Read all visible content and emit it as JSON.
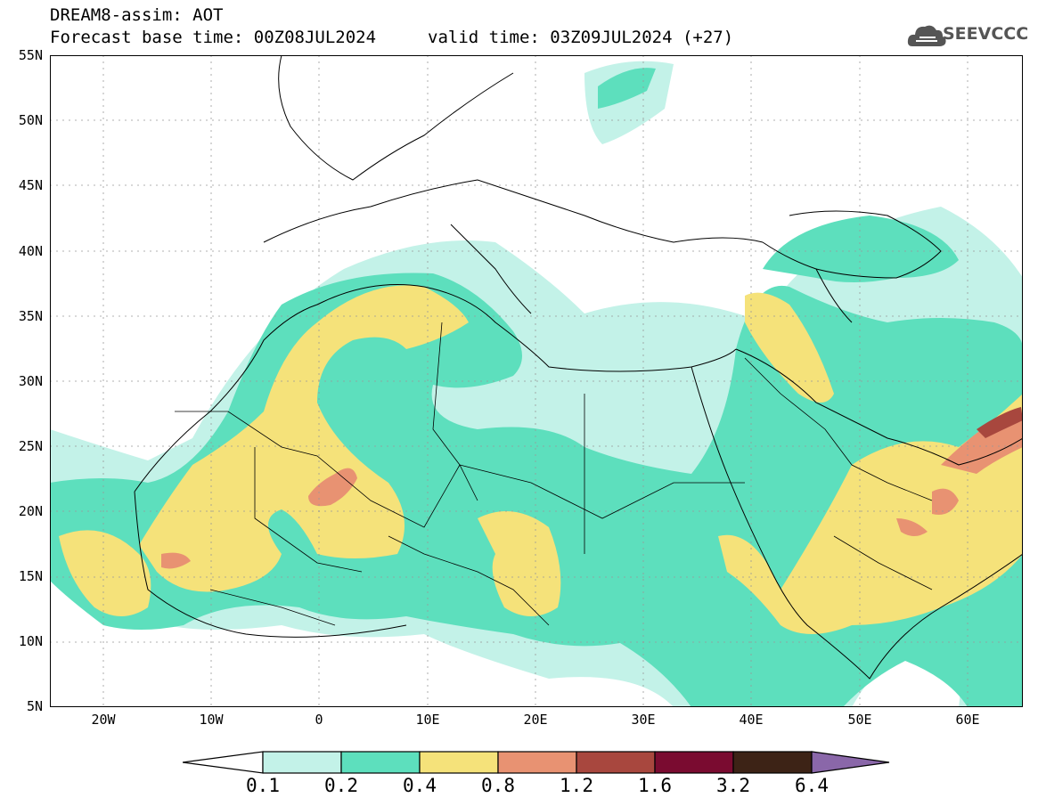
{
  "header": {
    "line1": "DREAM8-assim: AOT",
    "line2": "Forecast base time: 00Z08JUL2024",
    "valid_time": "valid time: 03Z09JUL2024 (+27)"
  },
  "logo": {
    "text": "SEEVCCC",
    "icon": "cloud-icon"
  },
  "map": {
    "y_ticks": [
      "55N",
      "50N",
      "45N",
      "40N",
      "35N",
      "30N",
      "25N",
      "20N",
      "15N",
      "10N",
      "5N"
    ],
    "x_ticks": [
      "20W",
      "10W",
      "0",
      "10E",
      "20E",
      "30E",
      "40E",
      "50E",
      "60E"
    ],
    "lat_range": [
      5,
      55
    ],
    "lon_range": [
      -25,
      65
    ]
  },
  "colorbar": {
    "labels": [
      "0.1",
      "0.2",
      "0.4",
      "0.8",
      "1.2",
      "1.6",
      "3.2",
      "6.4"
    ],
    "colors": [
      "#ffffff",
      "#c3f2e8",
      "#5ddfbd",
      "#f5e27a",
      "#e89272",
      "#a8473e",
      "#7a0b30",
      "#3d2316",
      "#8a67a9"
    ]
  }
}
